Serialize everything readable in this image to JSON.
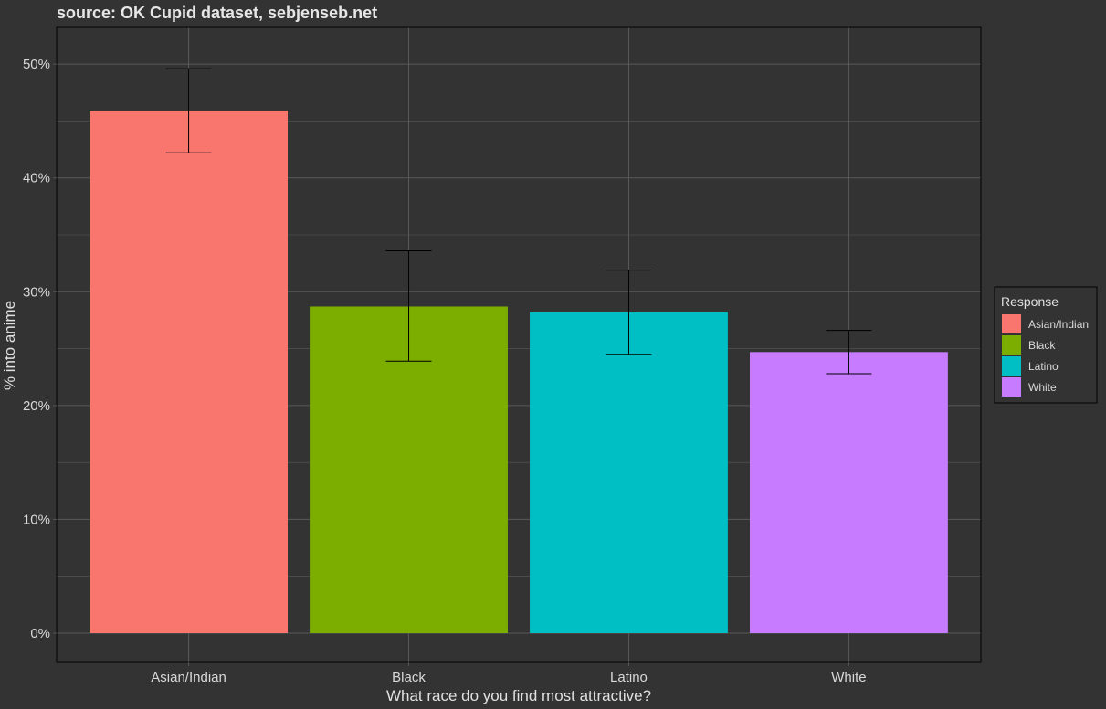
{
  "chart_data": {
    "type": "bar",
    "title": "source: OK Cupid dataset, sebjenseb.net",
    "xlabel": "What race do you find most attractive?",
    "ylabel": "% into anime",
    "categories": [
      "Asian/Indian",
      "Black",
      "Latino",
      "White"
    ],
    "values": [
      45.9,
      28.7,
      28.2,
      24.7
    ],
    "error_low": [
      42.2,
      23.9,
      24.5,
      22.8
    ],
    "error_high": [
      49.6,
      33.6,
      31.9,
      26.6
    ],
    "ylim": [
      0,
      52.5
    ],
    "yticks": [
      0,
      10,
      20,
      30,
      40,
      50
    ],
    "ytick_labels": [
      "0%",
      "10%",
      "20%",
      "30%",
      "40%",
      "50%"
    ],
    "grid": true,
    "legend": {
      "title": "Response",
      "placement": "right",
      "entries": [
        "Asian/Indian",
        "Black",
        "Latino",
        "White"
      ]
    },
    "colors": [
      "#F8766D",
      "#7CAE00",
      "#00BFC4",
      "#C77CFF"
    ],
    "background": "#333333",
    "grid_color": "#5a5a5a",
    "errorbar_color": "#000000"
  }
}
